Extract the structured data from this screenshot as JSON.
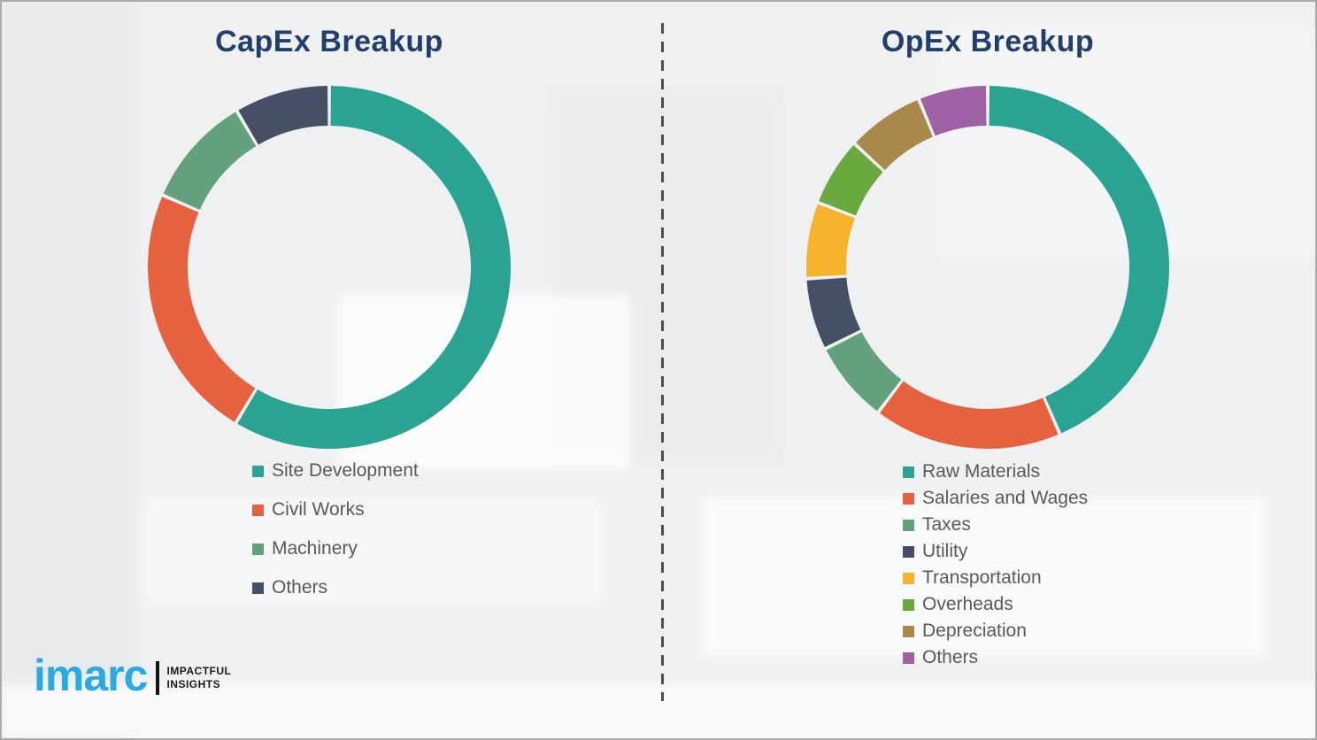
{
  "left_panel": {
    "title": "CapEx Breakup"
  },
  "right_panel": {
    "title": "OpEx Breakup"
  },
  "chart_data": [
    {
      "id": "capex",
      "type": "pie",
      "subtype": "donut",
      "title": "CapEx Breakup",
      "categories": [
        "Site Development",
        "Civil Works",
        "Machinery",
        "Others"
      ],
      "values": [
        58.6,
        22.9,
        10.0,
        8.5
      ],
      "values_note": "percent, estimated from arc angles; chart shows no numeric labels",
      "colors": [
        "#2aa393",
        "#e6613e",
        "#63a17d",
        "#474f66"
      ],
      "start_angle_deg": 0,
      "direction": "clockwise",
      "inner_radius_ratio": 0.78,
      "legend_position": "below-left",
      "data_labels": false
    },
    {
      "id": "opex",
      "type": "pie",
      "subtype": "donut",
      "title": "OpEx Breakup",
      "categories": [
        "Raw Materials",
        "Salaries and Wages",
        "Taxes",
        "Utility",
        "Transportation",
        "Overheads",
        "Depreciation",
        "Others"
      ],
      "values": [
        43.5,
        16.8,
        7.3,
        6.4,
        6.8,
        6.1,
        6.9,
        6.2
      ],
      "values_note": "percent, estimated from arc angles; chart shows no numeric labels",
      "colors": [
        "#2aa393",
        "#e6613e",
        "#63a17d",
        "#474f66",
        "#f8b32c",
        "#69a93d",
        "#a8894b",
        "#9e61a4"
      ],
      "start_angle_deg": 0,
      "direction": "clockwise",
      "inner_radius_ratio": 0.78,
      "legend_position": "below-left",
      "data_labels": false
    }
  ],
  "divider": {
    "orientation": "vertical",
    "style": "dashed",
    "color": "#4d4d4d"
  },
  "logo": {
    "brand": "imarc",
    "brand_color": "#29abe2",
    "tagline_line1": "IMPACTFUL",
    "tagline_line2": "INSIGHTS"
  },
  "theme": {
    "title_color": "#223e6b",
    "legend_text_color": "#595959",
    "background": "#eff0f1",
    "border_color": "#a9abad",
    "segment_gap_color": "#f8f9f9"
  }
}
